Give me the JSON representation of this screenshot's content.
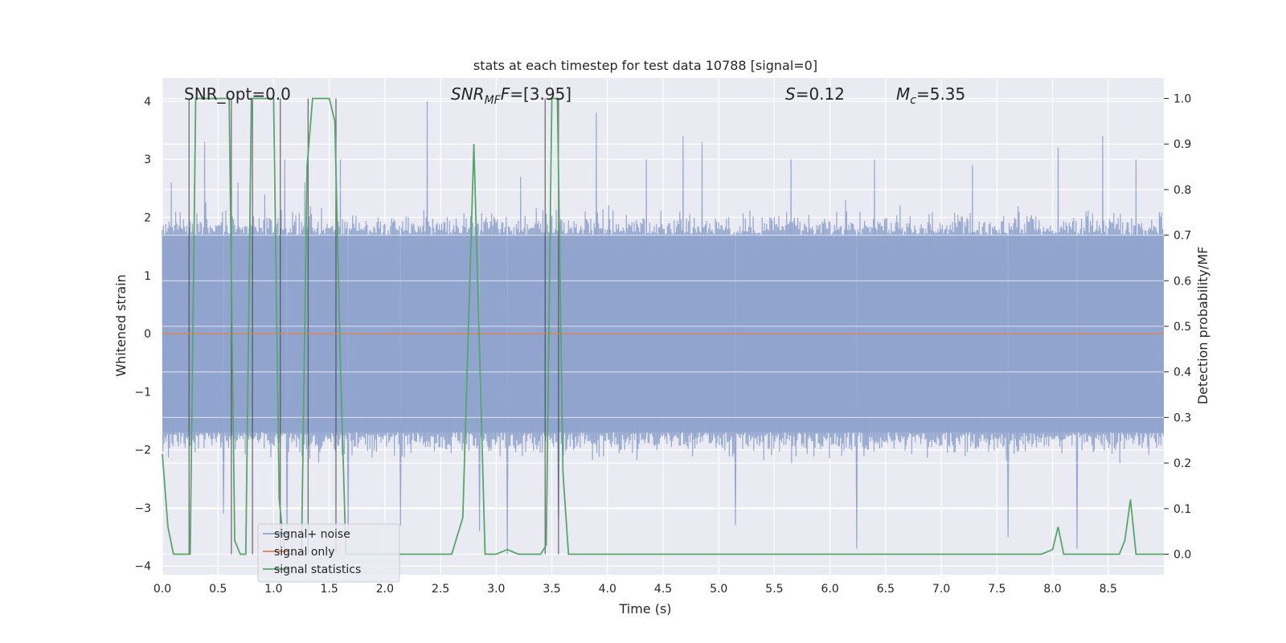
{
  "chart_data": {
    "type": "line",
    "title": "stats at each timestep for test data 10788 [signal=0]",
    "xlabel": "Time (s)",
    "ylabel": "Whitened strain",
    "ylabel_right": "Detection probability/MF",
    "xlim": [
      0.0,
      9.0
    ],
    "ylim": [
      -4.15,
      4.4
    ],
    "ylim_right": [
      -0.045,
      1.045
    ],
    "x_ticks": [
      0.0,
      0.5,
      1.0,
      1.5,
      2.0,
      2.5,
      3.0,
      3.5,
      4.0,
      4.5,
      5.0,
      5.5,
      6.0,
      6.5,
      7.0,
      7.5,
      8.0,
      8.5
    ],
    "x_tick_labels": [
      "0.0",
      "0.5",
      "1.0",
      "1.5",
      "2.0",
      "2.5",
      "3.0",
      "3.5",
      "4.0",
      "4.5",
      "5.0",
      "5.5",
      "6.0",
      "6.5",
      "7.0",
      "7.5",
      "8.0",
      "8.5"
    ],
    "y_ticks": [
      4,
      3,
      2,
      1,
      0,
      -1,
      -2,
      -3,
      -4
    ],
    "y_tick_labels": [
      "4",
      "3",
      "2",
      "1",
      "0",
      "−1",
      "−2",
      "−3",
      "−4"
    ],
    "y_ticks_right": [
      1.0,
      0.9,
      0.8,
      0.7,
      0.6,
      0.5,
      0.4,
      0.3,
      0.2,
      0.1,
      0.0
    ],
    "y_tick_labels_right": [
      "1.0",
      "0.9",
      "0.8",
      "0.7",
      "0.6",
      "0.5",
      "0.4",
      "0.3",
      "0.2",
      "0.1",
      "0.0"
    ],
    "annotations": {
      "snr_opt": "SNR_opt=0.0",
      "snr_mf": "SNR",
      "snr_mf_sub": "MF",
      "snr_mf_value": "=[3.95]",
      "s_sym": "S",
      "s_value": "=0.12",
      "mc_sym": "M",
      "mc_sub": "c",
      "mc_value": "=5.35"
    },
    "legend": {
      "placement": "lower-left",
      "entries": [
        "signal+ noise",
        "signal only",
        "signal statistics"
      ]
    },
    "series": [
      {
        "name": "signal+ noise",
        "axis": "left",
        "color": "#8fa3cc",
        "kind": "noise",
        "duration": 9.0,
        "samples": 1800,
        "envelope": 1.7,
        "peaks": [
          {
            "t": 0.08,
            "v": 2.6
          },
          {
            "t": 0.12,
            "v": 2.1
          },
          {
            "t": 0.38,
            "v": 3.3
          },
          {
            "t": 0.55,
            "v": -3.1
          },
          {
            "t": 0.68,
            "v": 2.6
          },
          {
            "t": 0.92,
            "v": 2.4
          },
          {
            "t": 1.1,
            "v": 3.0
          },
          {
            "t": 1.12,
            "v": -3.6
          },
          {
            "t": 1.28,
            "v": 2.6
          },
          {
            "t": 1.6,
            "v": 3.0
          },
          {
            "t": 1.67,
            "v": -3.5
          },
          {
            "t": 2.14,
            "v": -3.3
          },
          {
            "t": 2.38,
            "v": 4.0
          },
          {
            "t": 2.85,
            "v": -3.4
          },
          {
            "t": 3.1,
            "v": -3.8
          },
          {
            "t": 3.22,
            "v": 2.7
          },
          {
            "t": 3.56,
            "v": -3.2
          },
          {
            "t": 3.9,
            "v": 3.8
          },
          {
            "t": 4.35,
            "v": 3.0
          },
          {
            "t": 4.68,
            "v": 3.4
          },
          {
            "t": 4.85,
            "v": 3.3
          },
          {
            "t": 5.15,
            "v": -3.3
          },
          {
            "t": 5.65,
            "v": 3.0
          },
          {
            "t": 6.24,
            "v": -3.7
          },
          {
            "t": 6.4,
            "v": 3.0
          },
          {
            "t": 7.28,
            "v": 2.9
          },
          {
            "t": 7.6,
            "v": -3.5
          },
          {
            "t": 8.05,
            "v": 3.2
          },
          {
            "t": 8.22,
            "v": -3.7
          },
          {
            "t": 8.45,
            "v": 3.4
          },
          {
            "t": 8.75,
            "v": 3.0
          }
        ]
      },
      {
        "name": "signal only",
        "axis": "left",
        "color": "#dd8452",
        "x": [
          0.0,
          9.0
        ],
        "y": [
          0.0,
          0.0
        ]
      },
      {
        "name": "signal statistics",
        "axis": "right",
        "color": "#55a868",
        "x": [
          0.0,
          0.05,
          0.1,
          0.15,
          0.2,
          0.25,
          0.3,
          0.35,
          0.4,
          0.45,
          0.5,
          0.55,
          0.6,
          0.65,
          0.7,
          0.75,
          0.8,
          0.85,
          0.9,
          0.95,
          1.0,
          1.05,
          1.1,
          1.15,
          1.2,
          1.25,
          1.3,
          1.35,
          1.4,
          1.45,
          1.5,
          1.55,
          1.6,
          1.65,
          1.7,
          1.75,
          2.5,
          2.6,
          2.7,
          2.8,
          2.9,
          3.0,
          3.1,
          3.2,
          3.3,
          3.4,
          3.45,
          3.5,
          3.55,
          3.6,
          3.65,
          3.7,
          7.9,
          8.0,
          8.05,
          8.1,
          8.2,
          8.4,
          8.5,
          8.6,
          8.65,
          8.7,
          8.75,
          8.8,
          9.0
        ],
        "y": [
          0.22,
          0.06,
          0.0,
          0.0,
          0.0,
          0.0,
          1.0,
          1.0,
          1.0,
          1.0,
          1.0,
          1.0,
          1.0,
          0.03,
          0.0,
          0.0,
          1.0,
          1.0,
          1.0,
          1.0,
          1.0,
          0.12,
          0.0,
          0.0,
          0.0,
          0.0,
          0.85,
          1.0,
          1.0,
          1.0,
          1.0,
          0.95,
          0.42,
          0.0,
          0.0,
          0.0,
          0.0,
          0.0,
          0.08,
          0.9,
          0.0,
          0.0,
          0.01,
          0.0,
          0.0,
          0.0,
          0.02,
          1.0,
          1.0,
          0.18,
          0.0,
          0.0,
          0.0,
          0.01,
          0.06,
          0.0,
          0.0,
          0.0,
          0.0,
          0.0,
          0.03,
          0.12,
          0.0,
          0.0,
          0.0
        ]
      }
    ],
    "vlines": [
      0.24,
      0.62,
      0.81,
      1.06,
      1.31,
      1.56,
      3.44,
      3.56
    ]
  }
}
